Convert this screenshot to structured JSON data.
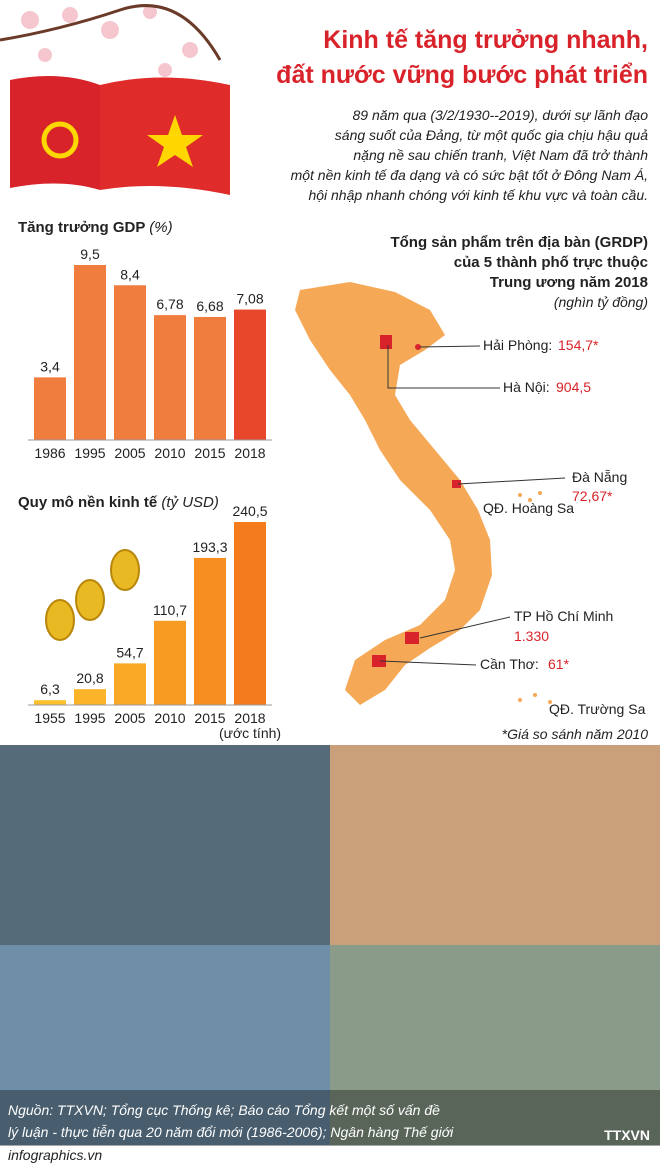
{
  "title": [
    "Kinh tế tăng trưởng nhanh,",
    "đất nước vững bước phát triển"
  ],
  "intro": [
    "89 năm qua (3/2/1930--2019), dưới sự lãnh đạo",
    "sáng suốt của Đảng, từ một quốc gia chịu hậu quả",
    "nặng nề sau chiến tranh, Việt Nam đã  trở thành",
    "một nền kinh tế đa dạng và có sức bật tốt ở Đông Nam Á,",
    "hội nhập nhanh chóng với kinh tế khu vực và toàn cầu."
  ],
  "chart_data": [
    {
      "type": "bar",
      "title": "Tăng trưởng GDP",
      "unit": "(%)",
      "categories": [
        "1986",
        "1995",
        "2005",
        "2010",
        "2015",
        "2018"
      ],
      "values": [
        3.4,
        9.5,
        8.4,
        6.78,
        6.68,
        7.08
      ],
      "value_labels": [
        "3,4",
        "9,5",
        "8,4",
        "6,78",
        "6,68",
        "7,08"
      ],
      "colors": [
        "#f07c3e",
        "#f07c3e",
        "#f07c3e",
        "#f07c3e",
        "#f07c3e",
        "#e9472b"
      ]
    },
    {
      "type": "bar",
      "title": "Quy mô nền kinh tế",
      "unit": "(tỷ USD)",
      "categories": [
        "1955",
        "1995",
        "2005",
        "2010",
        "2015",
        "2018"
      ],
      "values": [
        6.3,
        20.8,
        54.7,
        110.7,
        193.3,
        240.5
      ],
      "value_labels": [
        "6,3",
        "20,8",
        "54,7",
        "110,7",
        "193,3",
        "240,5"
      ],
      "annotations": [
        "(ước tính)"
      ],
      "colors": [
        "#fbc02d",
        "#fbb42a",
        "#f9a825",
        "#f89b22",
        "#f78f20",
        "#f47c1d"
      ]
    }
  ],
  "map": {
    "title": [
      "Tổng sản phẩm trên địa bàn (GRDP)",
      "của 5 thành phố trực thuộc",
      "Trung ương năm 2018"
    ],
    "unit": "(nghìn tỷ đồng)",
    "cities": [
      {
        "name": "Hải Phòng:",
        "value": "154,7*"
      },
      {
        "name": "Hà Nội:",
        "value": "904,5"
      },
      {
        "name": "Đà Nẵng",
        "value": "72,67*"
      },
      {
        "name": "TP Hồ Chí Minh",
        "value": "1.330"
      },
      {
        "name": "Cần Thơ:",
        "value": "61*"
      }
    ],
    "islands": [
      "QĐ. Hoàng Sa",
      "QĐ. Trường Sa"
    ],
    "note": "*Giá so sánh năm 2010"
  },
  "source": [
    "Nguồn: TTXVN; Tổng cục Thống kê; Báo cáo Tổng kết một số vấn đề",
    "lý luận - thực tiễn qua 20 năm đổi mới (1986-2006); Ngân hàng Thế giới"
  ],
  "footer": "infographics.vn",
  "logo": "TTXVN"
}
